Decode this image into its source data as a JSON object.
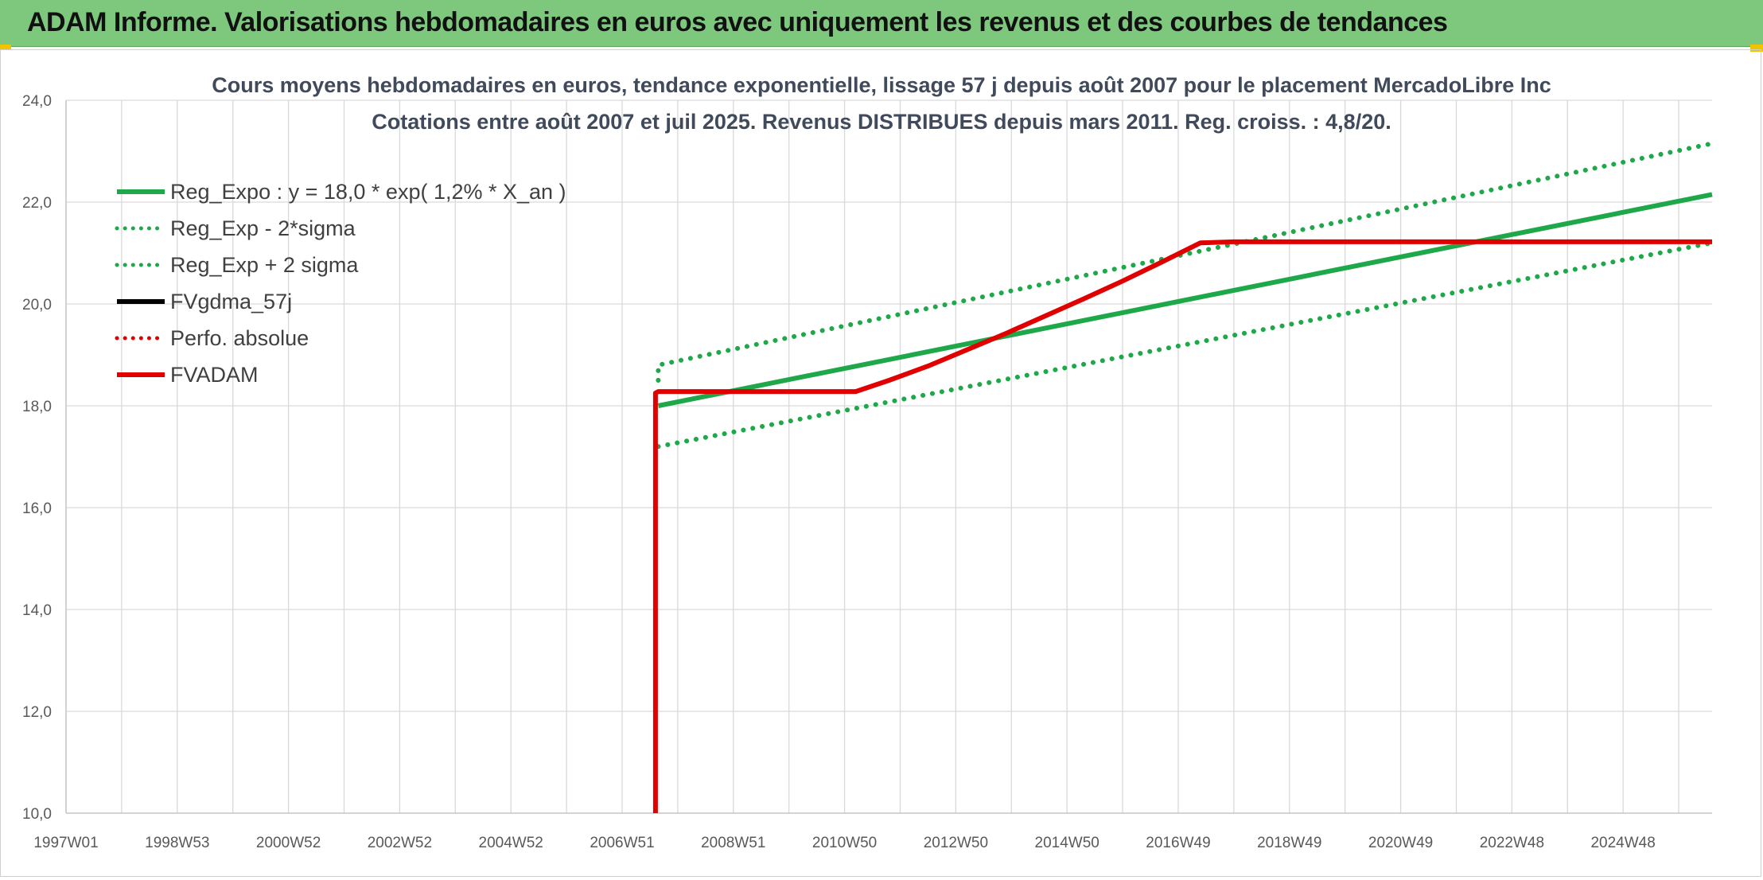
{
  "banner": {
    "title": "ADAM Informe. Valorisations hebdomadaires en euros avec uniquement les revenus et des courbes de tendances",
    "color": "#7dc87d"
  },
  "chart_data": {
    "type": "line",
    "title": "Cours moyens hebdomadaires en euros, tendance exponentielle, lissage 57 j depuis août 2007 pour le placement MercadoLibre Inc",
    "subtitle": "Cotations entre août 2007 et juil 2025. Revenus DISTRIBUES depuis mars 2011. Reg. croiss. : 4,8/20.",
    "xlabel": "",
    "ylabel": "",
    "x_range_years": [
      1997.0,
      2026.6
    ],
    "x_tick_labels": [
      {
        "label": "1997W01",
        "year": 1997.0
      },
      {
        "label": "1998W53",
        "year": 1999.0
      },
      {
        "label": "2000W52",
        "year": 2001.0
      },
      {
        "label": "2002W52",
        "year": 2003.0
      },
      {
        "label": "2004W52",
        "year": 2005.0
      },
      {
        "label": "2006W51",
        "year": 2007.0
      },
      {
        "label": "2008W51",
        "year": 2009.0
      },
      {
        "label": "2010W50",
        "year": 2011.0
      },
      {
        "label": "2012W50",
        "year": 2013.0
      },
      {
        "label": "2014W50",
        "year": 2015.0
      },
      {
        "label": "2016W49",
        "year": 2017.0
      },
      {
        "label": "2018W49",
        "year": 2019.0
      },
      {
        "label": "2020W49",
        "year": 2021.0
      },
      {
        "label": "2022W48",
        "year": 2023.0
      },
      {
        "label": "2024W48",
        "year": 2025.0
      }
    ],
    "ylim": [
      10,
      24
    ],
    "y_ticks": [
      10,
      12,
      14,
      16,
      18,
      20,
      22,
      24
    ],
    "y_tick_labels": [
      "10,0",
      "12,0",
      "14,0",
      "16,0",
      "18,0",
      "20,0",
      "22,0",
      "24,0"
    ],
    "grid": true,
    "legend_position": "top-left",
    "series": [
      {
        "name": "Reg_Expo : y = 18,0 * exp( 1,2% *  X_an )",
        "color": "#1fa84a",
        "style": "solid",
        "x": [
          2007.65,
          2026.6
        ],
        "y": [
          18.0,
          22.15
        ]
      },
      {
        "name": "Reg_Exp - 2*sigma",
        "color": "#1fa84a",
        "style": "dotted",
        "x": [
          2007.65,
          2026.6
        ],
        "y": [
          17.2,
          21.2
        ]
      },
      {
        "name": "Reg_Exp + 2 sigma",
        "color": "#1fa84a",
        "style": "dotted",
        "x": [
          2007.65,
          2007.65,
          2026.6
        ],
        "y": [
          18.5,
          18.8,
          23.15
        ]
      },
      {
        "name": "FVgdma_57j",
        "color": "#000000",
        "style": "solid",
        "x": [],
        "y": []
      },
      {
        "name": "Perfo. absolue",
        "color": "#e00000",
        "style": "dotted",
        "x": [],
        "y": []
      },
      {
        "name": "FVADAM",
        "color": "#e00000",
        "style": "solid",
        "x": [
          2007.6,
          2007.6,
          2007.65,
          2011.2,
          2011.8,
          2012.5,
          2013.2,
          2013.9,
          2014.6,
          2015.3,
          2016.0,
          2016.7,
          2017.4,
          2018.0,
          2026.6
        ],
        "y": [
          10.0,
          18.25,
          18.28,
          18.28,
          18.5,
          18.78,
          19.1,
          19.42,
          19.76,
          20.1,
          20.45,
          20.82,
          21.2,
          21.22,
          21.22
        ]
      }
    ]
  }
}
